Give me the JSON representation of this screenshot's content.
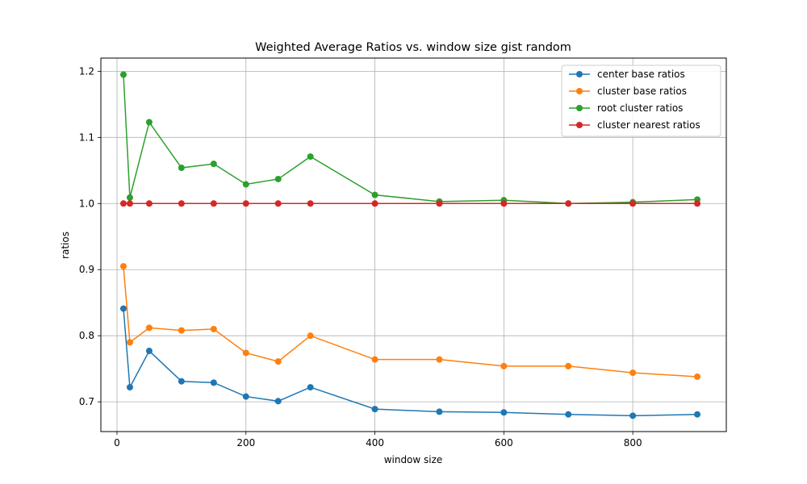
{
  "chart_data": {
    "type": "line",
    "title": "Weighted Average Ratios vs. window size gist random",
    "xlabel": "window size",
    "ylabel": "ratios",
    "xlim": [
      -25,
      945
    ],
    "ylim": [
      0.655,
      1.22
    ],
    "xticks": [
      0,
      200,
      400,
      600,
      800
    ],
    "yticks": [
      0.7,
      0.8,
      0.9,
      1.0,
      1.1,
      1.2
    ],
    "xtick_labels": [
      "0",
      "200",
      "400",
      "600",
      "800"
    ],
    "ytick_labels": [
      "0.7",
      "0.8",
      "0.9",
      "1.0",
      "1.1",
      "1.2"
    ],
    "grid": true,
    "legend_position": "top-right",
    "x": [
      10,
      20,
      50,
      100,
      150,
      200,
      250,
      300,
      400,
      500,
      600,
      700,
      800,
      900
    ],
    "series": [
      {
        "name": "center base ratios",
        "color": "#1f77b4",
        "values": [
          0.841,
          0.722,
          0.777,
          0.731,
          0.729,
          0.708,
          0.701,
          0.722,
          0.689,
          0.685,
          0.684,
          0.681,
          0.679,
          0.681
        ]
      },
      {
        "name": "cluster base ratios",
        "color": "#ff7f0e",
        "values": [
          0.905,
          0.79,
          0.812,
          0.808,
          0.81,
          0.774,
          0.761,
          0.8,
          0.764,
          0.764,
          0.754,
          0.754,
          0.744,
          0.738
        ]
      },
      {
        "name": "root cluster ratios",
        "color": "#2ca02c",
        "values": [
          1.195,
          1.009,
          1.123,
          1.054,
          1.06,
          1.029,
          1.037,
          1.071,
          1.013,
          1.003,
          1.005,
          1.0,
          1.002,
          1.006
        ]
      },
      {
        "name": "cluster nearest ratios",
        "color": "#d62728",
        "values": [
          1.0,
          1.0,
          1.0,
          1.0,
          1.0,
          1.0,
          1.0,
          1.0,
          1.0,
          1.0,
          1.0,
          1.0,
          1.0,
          1.0
        ]
      }
    ]
  }
}
